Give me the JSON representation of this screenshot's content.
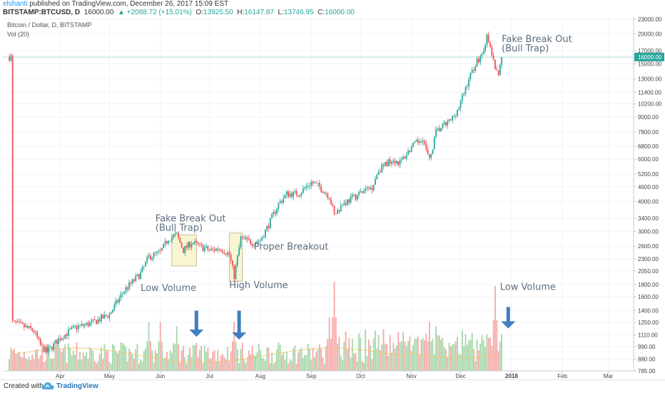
{
  "header": {
    "author": "elshanti",
    "published": "published on TradingView.com, December 26, 2017 15:09 EST",
    "symbol": "BITSTAMP:BTCUSD, D",
    "last": "16000.00",
    "change": "▲ +2088.72 (+15.01%)",
    "o_label": "O:",
    "o_value": "13925.50",
    "h_label": "H:",
    "h_value": "16147.87",
    "l_label": "L:",
    "l_value": "13746.95",
    "c_label": "C:",
    "c_value": "16000.00",
    "legend_title": "Bitcoin / Dollar, D, BITSTAMP",
    "legend_vol": "Vol (20)"
  },
  "footer": {
    "created_with": "Created with",
    "brand": "TradingView"
  },
  "colors": {
    "up": "#26a69a",
    "down": "#ef5350",
    "vol_up": "#a5d6a7",
    "vol_down": "#f4a7a6",
    "annotation": "#5d6f7e",
    "arrow": "#3d7fc1",
    "box": "#f6f2c4",
    "price_line": "#26a69a",
    "ma": "#f5c26b"
  },
  "chart_data": {
    "type": "candlestick",
    "price_scale": "log",
    "y_ticks": [
      785.0,
      880.0,
      990.0,
      1110.0,
      1250.0,
      1400.0,
      1600.0,
      1800.0,
      2050.0,
      2300.0,
      2600.0,
      3000.0,
      3400.0,
      4000.0,
      4600.0,
      5200.0,
      6000.0,
      6800.0,
      7800.0,
      9000.0,
      10200.0,
      11400.0,
      13000.0,
      15000.0,
      17000.0,
      20000.0,
      23000.0
    ],
    "x_ticks": [
      "Apr",
      "May",
      "Jun",
      "Jul",
      "Aug",
      "Sep",
      "Oct",
      "Nov",
      "Dec",
      "2018",
      "Feb",
      "Mar"
    ],
    "last_price_label": "16000.00",
    "price_path": [
      [
        "2017-03-03",
        1250
      ],
      [
        "2017-03-10",
        1200
      ],
      [
        "2017-03-16",
        1150
      ],
      [
        "2017-03-20",
        1000
      ],
      [
        "2017-03-24",
        940
      ],
      [
        "2017-04-01",
        1080
      ],
      [
        "2017-04-10",
        1190
      ],
      [
        "2017-04-20",
        1240
      ],
      [
        "2017-05-01",
        1350
      ],
      [
        "2017-05-10",
        1700
      ],
      [
        "2017-05-20",
        2000
      ],
      [
        "2017-05-25",
        2350
      ],
      [
        "2017-06-01",
        2450
      ],
      [
        "2017-06-06",
        2800
      ],
      [
        "2017-06-11",
        2900
      ],
      [
        "2017-06-15",
        2500
      ],
      [
        "2017-06-20",
        2700
      ],
      [
        "2017-06-25",
        2600
      ],
      [
        "2017-07-01",
        2500
      ],
      [
        "2017-07-08",
        2550
      ],
      [
        "2017-07-13",
        2400
      ],
      [
        "2017-07-16",
        1950
      ],
      [
        "2017-07-20",
        2800
      ],
      [
        "2017-07-27",
        2700
      ],
      [
        "2017-08-01",
        2750
      ],
      [
        "2017-08-06",
        3200
      ],
      [
        "2017-08-12",
        3900
      ],
      [
        "2017-08-17",
        4300
      ],
      [
        "2017-08-24",
        4300
      ],
      [
        "2017-09-01",
        4800
      ],
      [
        "2017-09-06",
        4600
      ],
      [
        "2017-09-12",
        4200
      ],
      [
        "2017-09-15",
        3500
      ],
      [
        "2017-09-20",
        3900
      ],
      [
        "2017-09-30",
        4300
      ],
      [
        "2017-10-08",
        4600
      ],
      [
        "2017-10-12",
        5400
      ],
      [
        "2017-10-20",
        6000
      ],
      [
        "2017-10-25",
        5800
      ],
      [
        "2017-11-01",
        6700
      ],
      [
        "2017-11-08",
        7400
      ],
      [
        "2017-11-10",
        6500
      ],
      [
        "2017-11-12",
        5900
      ],
      [
        "2017-11-16",
        7800
      ],
      [
        "2017-11-25",
        8700
      ],
      [
        "2017-11-30",
        9900
      ],
      [
        "2017-12-06",
        13000
      ],
      [
        "2017-12-10",
        15000
      ],
      [
        "2017-12-14",
        16500
      ],
      [
        "2017-12-17",
        19300
      ],
      [
        "2017-12-20",
        16500
      ],
      [
        "2017-12-22",
        13900
      ],
      [
        "2017-12-24",
        13900
      ],
      [
        "2017-12-26",
        16000
      ]
    ],
    "volume_peaks": [
      [
        "2017-09-15",
        1.0
      ],
      [
        "2017-12-22",
        0.95
      ],
      [
        "2017-09-12",
        0.6
      ],
      [
        "2017-11-12",
        0.55
      ],
      [
        "2017-07-16",
        0.55
      ],
      [
        "2017-06-11",
        0.5
      ],
      [
        "2017-05-25",
        0.55
      ],
      [
        "2017-06-01",
        0.55
      ]
    ],
    "annotations": [
      {
        "text": "Fake Break Out\n(Bull Trap)",
        "date": "2017-05-29",
        "price": 3300
      },
      {
        "text": "Fake Break Out\n(Bull Trap)",
        "date": "2017-12-26",
        "price": 18500
      },
      {
        "text": "Proper Breakout",
        "date": "2017-07-28",
        "price": 2520
      },
      {
        "text": "Low Volume",
        "date": "2017-05-20",
        "price": 1690
      },
      {
        "text": "High Volume",
        "date": "2017-07-13",
        "price": 1740
      },
      {
        "text": "Low Volume",
        "date": "2017-12-25",
        "price": 1710
      }
    ],
    "boxes": [
      {
        "from": "2017-06-08",
        "to": "2017-06-23",
        "top": 2900,
        "bottom": 2150
      },
      {
        "from": "2017-07-13",
        "to": "2017-07-21",
        "top": 2950,
        "bottom": 1860
      }
    ],
    "arrows": [
      {
        "date": "2017-06-23",
        "from_price": 1400,
        "to_price": 1090
      },
      {
        "date": "2017-07-19",
        "from_price": 1400,
        "to_price": 1060
      },
      {
        "date": "2017-12-30",
        "from_price": 1450,
        "to_price": 1180
      }
    ]
  }
}
